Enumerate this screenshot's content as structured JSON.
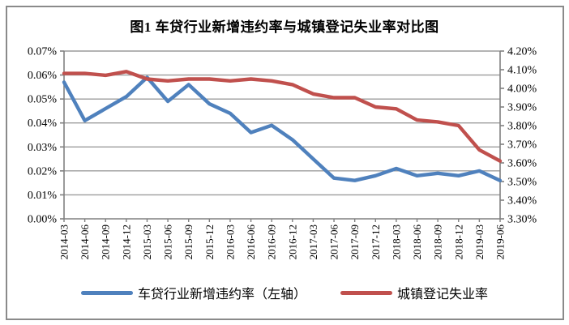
{
  "window": {
    "background": "#ffffff",
    "frame_border_color": "#8a8a8a"
  },
  "chart_data": {
    "type": "line",
    "title": "图1 车贷行业新增违约率与城镇登记失业率对比图",
    "unit": "%",
    "grid": true,
    "legend_position": "bottom",
    "categories": [
      "2014-03",
      "2014-06",
      "2014-09",
      "2014-12",
      "2015-03",
      "2015-06",
      "2015-09",
      "2015-12",
      "2016-03",
      "2016-06",
      "2016-09",
      "2016-12",
      "2017-03",
      "2017-06",
      "2017-09",
      "2017-12",
      "2018-03",
      "2018-06",
      "2018-09",
      "2018-12",
      "2019-03",
      "2019-06"
    ],
    "series": [
      {
        "name": "车贷行业新增违约率（左轴）",
        "axis": "left",
        "color": "#4F81BD",
        "values": [
          0.057,
          0.041,
          0.046,
          0.051,
          0.059,
          0.049,
          0.056,
          0.048,
          0.044,
          0.036,
          0.039,
          0.033,
          0.025,
          0.017,
          0.016,
          0.018,
          0.021,
          0.018,
          0.019,
          0.018,
          0.02,
          0.016
        ]
      },
      {
        "name": "城镇登记失业率",
        "axis": "right",
        "color": "#C0504D",
        "values": [
          4.08,
          4.08,
          4.07,
          4.09,
          4.05,
          4.04,
          4.05,
          4.05,
          4.04,
          4.05,
          4.04,
          4.02,
          3.97,
          3.95,
          3.95,
          3.9,
          3.89,
          3.83,
          3.82,
          3.8,
          3.67,
          3.61
        ]
      }
    ],
    "left_axis": {
      "min": 0.0,
      "max": 0.07,
      "tick_labels": [
        "0.00%",
        "0.01%",
        "0.02%",
        "0.03%",
        "0.04%",
        "0.05%",
        "0.06%",
        "0.07%"
      ]
    },
    "right_axis": {
      "min": 3.3,
      "max": 4.2,
      "tick_labels": [
        "3.30%",
        "3.40%",
        "3.50%",
        "3.60%",
        "3.70%",
        "3.80%",
        "3.90%",
        "4.00%",
        "4.10%",
        "4.20%"
      ]
    },
    "colors": {
      "gridline": "#9c9c9c",
      "axis": "#808080",
      "text": "#000000"
    }
  }
}
